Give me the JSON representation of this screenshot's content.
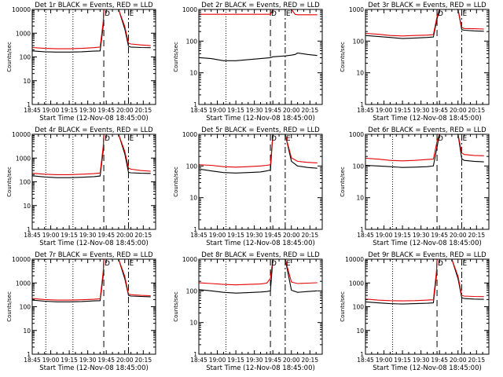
{
  "figure": {
    "background": "#ffffff",
    "colors": {
      "events": "#000000",
      "lld": "#e60000"
    }
  },
  "chart_data": [
    {
      "type": "line",
      "title": "Det 1r BLACK = Events, RED = LLD",
      "xlabel": "Start Time (12-Nov-08 18:45:00)",
      "ylabel": "Counts/sec",
      "ylog": true,
      "ylim": [
        1,
        10000
      ],
      "xlim_minutes": [
        0,
        100
      ],
      "x_ticks": [
        "18:45",
        "19:00",
        "19:15",
        "19:30",
        "19:45",
        "20:00",
        "20:15"
      ],
      "y_ticks": [
        "1",
        "10",
        "100",
        "1000",
        "10000"
      ],
      "series": [
        {
          "name": "Events",
          "color": "#000000",
          "x": [
            0,
            10,
            20,
            30,
            40,
            50,
            55,
            57.5,
            58,
            63,
            70,
            75,
            78,
            80,
            88,
            96
          ],
          "y": [
            180,
            165,
            160,
            160,
            165,
            175,
            180,
            2000,
            10000,
            10000,
            10000,
            1500,
            280,
            260,
            250,
            245
          ]
        },
        {
          "name": "LLD",
          "color": "#e60000",
          "x": [
            0,
            10,
            20,
            30,
            40,
            50,
            55,
            57.5,
            58,
            63,
            70,
            75,
            78,
            80,
            88,
            96
          ],
          "y": [
            250,
            230,
            220,
            220,
            230,
            245,
            260,
            3000,
            10000,
            10000,
            10000,
            1900,
            380,
            350,
            320,
            300
          ]
        }
      ],
      "markers": [
        {
          "x": 11,
          "style": "dotted"
        },
        {
          "x": 33,
          "style": "dotted"
        },
        {
          "x": 58,
          "style": "dashed",
          "label": "D"
        },
        {
          "x": 78,
          "style": "dashdot",
          "label": "E"
        }
      ]
    },
    {
      "type": "line",
      "title": "Det 2r BLACK = Events, RED = LLD",
      "xlabel": "Start Time (12-Nov-08 18:45:00)",
      "ylabel": "Counts/sec",
      "ylog": true,
      "ylim": [
        1,
        1000
      ],
      "xlim_minutes": [
        0,
        100
      ],
      "x_ticks": [
        "18:45",
        "19:00",
        "19:15",
        "19:30",
        "19:45",
        "20:00",
        "20:15"
      ],
      "y_ticks": [
        "1",
        "10",
        "100",
        "1000"
      ],
      "series": [
        {
          "name": "Events",
          "color": "#000000",
          "x": [
            0,
            10,
            20,
            30,
            40,
            50,
            58,
            60,
            70,
            75,
            78,
            80,
            88,
            96
          ],
          "y": [
            30,
            28,
            24,
            24,
            26,
            28,
            30,
            32,
            34,
            36,
            38,
            42,
            38,
            35
          ]
        },
        {
          "name": "LLD",
          "color": "#e60000",
          "x": [
            0,
            10,
            20,
            30,
            40,
            50,
            58,
            60,
            70,
            75,
            78,
            80,
            88,
            96
          ],
          "y": [
            700,
            700,
            700,
            700,
            700,
            700,
            700,
            1000,
            1000,
            1000,
            700,
            680,
            680,
            680
          ]
        }
      ],
      "markers": [
        {
          "x": 22,
          "style": "dotted"
        },
        {
          "x": 58,
          "style": "dashed",
          "label": "D"
        },
        {
          "x": 70,
          "style": "dashdot",
          "label": "E"
        }
      ]
    },
    {
      "type": "line",
      "title": "Det 3r BLACK = Events, RED = LLD",
      "xlabel": "Start Time (12-Nov-08 18:45:00)",
      "ylabel": "Counts/sec",
      "ylog": true,
      "ylim": [
        1,
        1000
      ],
      "xlim_minutes": [
        0,
        100
      ],
      "x_ticks": [
        "18:45",
        "19:00",
        "19:15",
        "19:30",
        "19:45",
        "20:00",
        "20:15"
      ],
      "y_ticks": [
        "1",
        "10",
        "100",
        "1000"
      ],
      "series": [
        {
          "name": "Events",
          "color": "#000000",
          "x": [
            0,
            10,
            20,
            30,
            40,
            50,
            55,
            58,
            60,
            70,
            75,
            78,
            80,
            88,
            96
          ],
          "y": [
            150,
            140,
            130,
            120,
            125,
            130,
            135,
            500,
            1000,
            1000,
            1000,
            230,
            220,
            210,
            205
          ]
        },
        {
          "name": "LLD",
          "color": "#e60000",
          "x": [
            0,
            10,
            20,
            30,
            40,
            50,
            55,
            58,
            60,
            70,
            75,
            78,
            80,
            88,
            96
          ],
          "y": [
            175,
            165,
            150,
            145,
            150,
            155,
            160,
            600,
            1000,
            1000,
            1000,
            270,
            250,
            245,
            240
          ]
        }
      ],
      "markers": [
        {
          "x": 58,
          "style": "dashed",
          "label": "D"
        },
        {
          "x": 78,
          "style": "dashdot",
          "label": "E"
        }
      ]
    },
    {
      "type": "line",
      "title": "Det 4r BLACK = Events, RED = LLD",
      "xlabel": "Start Time (12-Nov-08 18:45:00)",
      "ylabel": "Counts/sec",
      "ylog": true,
      "ylim": [
        1,
        10000
      ],
      "xlim_minutes": [
        0,
        100
      ],
      "x_ticks": [
        "18:45",
        "19:00",
        "19:15",
        "19:30",
        "19:45",
        "20:00",
        "20:15"
      ],
      "y_ticks": [
        "1",
        "10",
        "100",
        "1000",
        "10000"
      ],
      "series": [
        {
          "name": "Events",
          "color": "#000000",
          "x": [
            0,
            10,
            20,
            30,
            40,
            50,
            55,
            57.5,
            58,
            63,
            70,
            75,
            78,
            80,
            88,
            96
          ],
          "y": [
            180,
            160,
            150,
            150,
            155,
            165,
            175,
            2000,
            10000,
            10000,
            10000,
            1500,
            250,
            240,
            230,
            225
          ]
        },
        {
          "name": "LLD",
          "color": "#e60000",
          "x": [
            0,
            10,
            20,
            30,
            40,
            50,
            55,
            57.5,
            58,
            63,
            70,
            75,
            78,
            80,
            88,
            96
          ],
          "y": [
            230,
            210,
            200,
            200,
            210,
            220,
            235,
            3000,
            10000,
            10000,
            10000,
            1900,
            380,
            340,
            300,
            280
          ]
        }
      ],
      "markers": [
        {
          "x": 11,
          "style": "dotted"
        },
        {
          "x": 33,
          "style": "dotted"
        },
        {
          "x": 58,
          "style": "dashed",
          "label": "D"
        },
        {
          "x": 78,
          "style": "dashdot",
          "label": "E"
        }
      ]
    },
    {
      "type": "line",
      "title": "Det 5r BLACK = Events, RED = LLD",
      "xlabel": "Start Time (12-Nov-08 18:45:00)",
      "ylabel": "Counts/sec",
      "ylog": true,
      "ylim": [
        1,
        1000
      ],
      "xlim_minutes": [
        0,
        100
      ],
      "x_ticks": [
        "18:45",
        "19:00",
        "19:15",
        "19:30",
        "19:45",
        "20:00",
        "20:15"
      ],
      "y_ticks": [
        "1",
        "10",
        "100",
        "1000"
      ],
      "series": [
        {
          "name": "Events",
          "color": "#000000",
          "x": [
            0,
            10,
            20,
            30,
            40,
            50,
            55,
            58,
            60,
            65,
            70,
            75,
            80,
            88,
            96
          ],
          "y": [
            80,
            70,
            62,
            60,
            62,
            65,
            70,
            75,
            1000,
            1000,
            1000,
            140,
            100,
            90,
            85
          ]
        },
        {
          "name": "LLD",
          "color": "#e60000",
          "x": [
            0,
            10,
            20,
            30,
            40,
            50,
            55,
            58,
            60,
            65,
            70,
            75,
            80,
            88,
            96
          ],
          "y": [
            110,
            105,
            95,
            92,
            95,
            100,
            105,
            110,
            1000,
            1000,
            1000,
            180,
            140,
            130,
            125
          ]
        }
      ],
      "markers": [
        {
          "x": 22,
          "style": "dotted"
        },
        {
          "x": 58,
          "style": "dashed",
          "label": "D"
        },
        {
          "x": 70,
          "style": "dashdot",
          "label": "E"
        }
      ]
    },
    {
      "type": "line",
      "title": "Det 6r BLACK = Events, RED = LLD",
      "xlabel": "Start Time (12-Nov-08 18:45:00)",
      "ylabel": "Counts/sec",
      "ylog": true,
      "ylim": [
        1,
        1000
      ],
      "xlim_minutes": [
        0,
        100
      ],
      "x_ticks": [
        "18:45",
        "19:00",
        "19:15",
        "19:30",
        "19:45",
        "20:00",
        "20:15"
      ],
      "y_ticks": [
        "1",
        "10",
        "100",
        "1000"
      ],
      "series": [
        {
          "name": "Events",
          "color": "#000000",
          "x": [
            0,
            10,
            20,
            30,
            40,
            50,
            55,
            58,
            60,
            70,
            75,
            78,
            80,
            88,
            96
          ],
          "y": [
            105,
            100,
            95,
            90,
            92,
            95,
            100,
            400,
            1000,
            1000,
            1000,
            170,
            150,
            140,
            135
          ]
        },
        {
          "name": "LLD",
          "color": "#e60000",
          "x": [
            0,
            10,
            20,
            30,
            40,
            50,
            55,
            58,
            60,
            70,
            75,
            78,
            80,
            88,
            96
          ],
          "y": [
            175,
            165,
            150,
            145,
            150,
            160,
            165,
            600,
            1000,
            1000,
            1000,
            260,
            230,
            215,
            210
          ]
        }
      ],
      "markers": [
        {
          "x": 22,
          "style": "dotted"
        },
        {
          "x": 58,
          "style": "dashed",
          "label": "D"
        },
        {
          "x": 78,
          "style": "dashdot",
          "label": "E"
        }
      ]
    },
    {
      "type": "line",
      "title": "Det 7r BLACK = Events, RED = LLD",
      "xlabel": "Start Time (12-Nov-08 18:45:00)",
      "ylabel": "Counts/sec",
      "ylog": true,
      "ylim": [
        1,
        10000
      ],
      "xlim_minutes": [
        0,
        100
      ],
      "x_ticks": [
        "18:45",
        "19:00",
        "19:15",
        "19:30",
        "19:45",
        "20:00",
        "20:15"
      ],
      "y_ticks": [
        "1",
        "10",
        "100",
        "1000",
        "10000"
      ],
      "series": [
        {
          "name": "Events",
          "color": "#000000",
          "x": [
            0,
            10,
            20,
            30,
            40,
            50,
            55,
            57.5,
            58,
            63,
            70,
            75,
            78,
            80,
            88,
            96
          ],
          "y": [
            190,
            170,
            160,
            160,
            165,
            175,
            180,
            2000,
            10000,
            10000,
            10000,
            1500,
            300,
            280,
            270,
            260
          ]
        },
        {
          "name": "LLD",
          "color": "#e60000",
          "x": [
            0,
            10,
            20,
            30,
            40,
            50,
            55,
            57.5,
            58,
            63,
            70,
            75,
            78,
            80,
            88,
            96
          ],
          "y": [
            220,
            200,
            190,
            190,
            195,
            205,
            215,
            3000,
            10000,
            10000,
            10000,
            1900,
            340,
            320,
            300,
            290
          ]
        }
      ],
      "markers": [
        {
          "x": 11,
          "style": "dotted"
        },
        {
          "x": 33,
          "style": "dotted"
        },
        {
          "x": 58,
          "style": "dashed",
          "label": "D"
        },
        {
          "x": 78,
          "style": "dashdot",
          "label": "E"
        }
      ]
    },
    {
      "type": "line",
      "title": "Det 8r BLACK = Events, RED = LLD",
      "xlabel": "Start Time (12-Nov-08 18:45:00)",
      "ylabel": "Counts/sec",
      "ylog": true,
      "ylim": [
        1,
        1000
      ],
      "xlim_minutes": [
        0,
        100
      ],
      "x_ticks": [
        "18:45",
        "19:00",
        "19:15",
        "19:30",
        "19:45",
        "20:00",
        "20:15"
      ],
      "y_ticks": [
        "1",
        "10",
        "100",
        "1000"
      ],
      "series": [
        {
          "name": "Events",
          "color": "#000000",
          "x": [
            0,
            10,
            20,
            30,
            40,
            50,
            55,
            58,
            60,
            65,
            70,
            75,
            80,
            88,
            96
          ],
          "y": [
            110,
            100,
            90,
            85,
            88,
            92,
            95,
            100,
            1000,
            1000,
            1000,
            105,
            90,
            95,
            100
          ]
        },
        {
          "name": "LLD",
          "color": "#e60000",
          "x": [
            0,
            10,
            20,
            30,
            40,
            50,
            55,
            58,
            60,
            65,
            70,
            75,
            80,
            88,
            96
          ],
          "y": [
            180,
            170,
            160,
            155,
            160,
            165,
            175,
            250,
            1000,
            1000,
            1000,
            190,
            170,
            175,
            180
          ]
        }
      ],
      "markers": [
        {
          "x": 22,
          "style": "dotted"
        },
        {
          "x": 58,
          "style": "dashed",
          "label": "D"
        },
        {
          "x": 70,
          "style": "dashdot",
          "label": "E"
        }
      ]
    },
    {
      "type": "line",
      "title": "Det 9r BLACK = Events, RED = LLD",
      "xlabel": "Start Time (12-Nov-08 18:45:00)",
      "ylabel": "Counts/sec",
      "ylog": true,
      "ylim": [
        1,
        10000
      ],
      "xlim_minutes": [
        0,
        100
      ],
      "x_ticks": [
        "18:45",
        "19:00",
        "19:15",
        "19:30",
        "19:45",
        "20:00",
        "20:15"
      ],
      "y_ticks": [
        "1",
        "10",
        "100",
        "1000",
        "10000"
      ],
      "series": [
        {
          "name": "Events",
          "color": "#000000",
          "x": [
            0,
            10,
            20,
            30,
            40,
            50,
            55,
            57.5,
            58,
            63,
            70,
            75,
            78,
            80,
            88,
            96
          ],
          "y": [
            160,
            145,
            135,
            130,
            135,
            140,
            145,
            2000,
            10000,
            10000,
            10000,
            1500,
            240,
            220,
            210,
            205
          ]
        },
        {
          "name": "LLD",
          "color": "#e60000",
          "x": [
            0,
            10,
            20,
            30,
            40,
            50,
            55,
            57.5,
            58,
            63,
            70,
            75,
            78,
            80,
            88,
            96
          ],
          "y": [
            210,
            190,
            180,
            175,
            180,
            190,
            195,
            3000,
            10000,
            10000,
            10000,
            1900,
            300,
            280,
            270,
            265
          ]
        }
      ],
      "markers": [
        {
          "x": 22,
          "style": "dotted"
        },
        {
          "x": 58,
          "style": "dashed",
          "label": "D"
        },
        {
          "x": 78,
          "style": "dashdot",
          "label": "E"
        }
      ]
    }
  ]
}
